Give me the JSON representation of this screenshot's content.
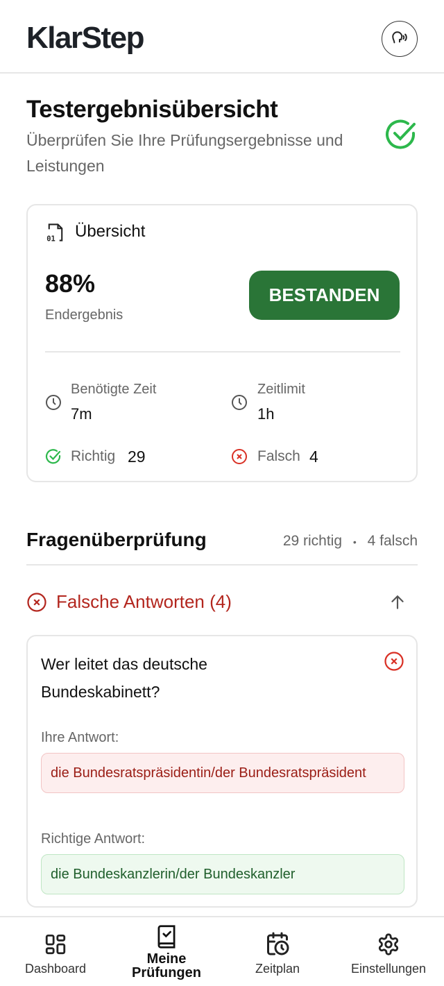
{
  "app": {
    "title": "KlarStep",
    "voice_icon": "speaking-head-icon"
  },
  "page": {
    "title": "Testergebnisübersicht",
    "subtitle": "Überprüfen Sie Ihre Prüfungsergebnisse und Leistungen"
  },
  "overview": {
    "heading": "Übersicht",
    "score": "88%",
    "score_label": "Endergebnis",
    "status": "BESTANDEN",
    "time_label": "Benötigte Zeit",
    "time_value": "7m",
    "limit_label": "Zeitlimit",
    "limit_value": "1h",
    "correct_label": "Richtig",
    "correct_value": "29",
    "wrong_label": "Falsch",
    "wrong_value": "4"
  },
  "review": {
    "heading": "Fragenüberprüfung",
    "correct_count": "29 richtig",
    "separator": "•",
    "wrong_count": "4 falsch",
    "wrong_section": "Falsche Antworten (4)",
    "question": {
      "text": "Wer leitet das deutsche Bundeskabinett?",
      "your_label": "Ihre Antwort:",
      "your_answer": "die Bundesratspräsidentin/der Bundesratspräsident",
      "correct_label": "Richtige Antwort:",
      "correct_answer": "die Bundeskanzlerin/der Bundeskanzler"
    }
  },
  "nav": [
    {
      "label": "Dashboard"
    },
    {
      "label": "Meine Prüfungen",
      "active": true
    },
    {
      "label": "Zeitplan"
    },
    {
      "label": "Einstellungen"
    }
  ],
  "colors": {
    "pass": "#2a7537",
    "success": "#2db84c",
    "error": "#d93025",
    "error_text": "#b3261e"
  }
}
